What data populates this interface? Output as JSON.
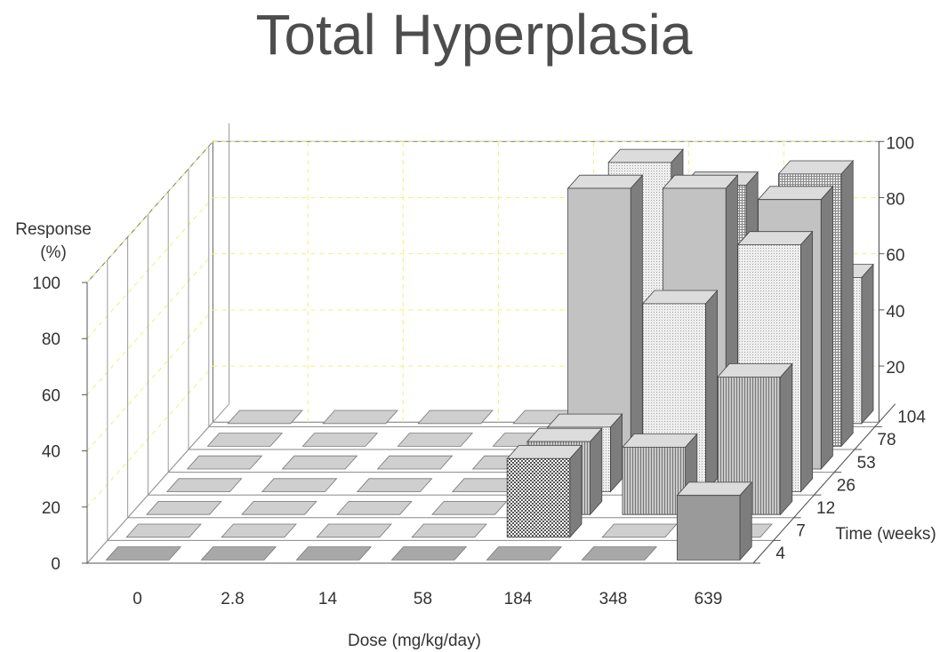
{
  "chart_data": {
    "type": "bar",
    "title": "Total Hyperplasia",
    "xlabel": "Dose (mg/kg/day)",
    "ylabel": "Response (%)",
    "ylabel_lines": [
      "Response",
      "(%)"
    ],
    "zlabel": "Time (weeks)",
    "categories": [
      "0",
      "2.8",
      "14",
      "58",
      "184",
      "348",
      "639"
    ],
    "y_ticks": [
      "0",
      "20",
      "40",
      "60",
      "80",
      "100"
    ],
    "right_ticks": [
      "20",
      "40",
      "60",
      "80",
      "100"
    ],
    "ylim": [
      0,
      100
    ],
    "series": [
      {
        "name": "4",
        "values": [
          0,
          0,
          0,
          0,
          0,
          0,
          23
        ]
      },
      {
        "name": "7",
        "values": [
          0,
          0,
          0,
          0,
          28,
          0,
          0
        ]
      },
      {
        "name": "12",
        "values": [
          0,
          0,
          0,
          0,
          26,
          24,
          49
        ]
      },
      {
        "name": "26",
        "values": [
          0,
          0,
          0,
          0,
          23,
          67,
          88
        ]
      },
      {
        "name": "53",
        "values": [
          0,
          0,
          0,
          0,
          100,
          100,
          96
        ]
      },
      {
        "name": "78",
        "values": [
          0,
          0,
          0,
          0,
          33,
          93,
          97
        ]
      },
      {
        "name": "104",
        "values": [
          0,
          0,
          0,
          0,
          93,
          38,
          52
        ]
      }
    ],
    "grid": true,
    "legend": "none"
  }
}
